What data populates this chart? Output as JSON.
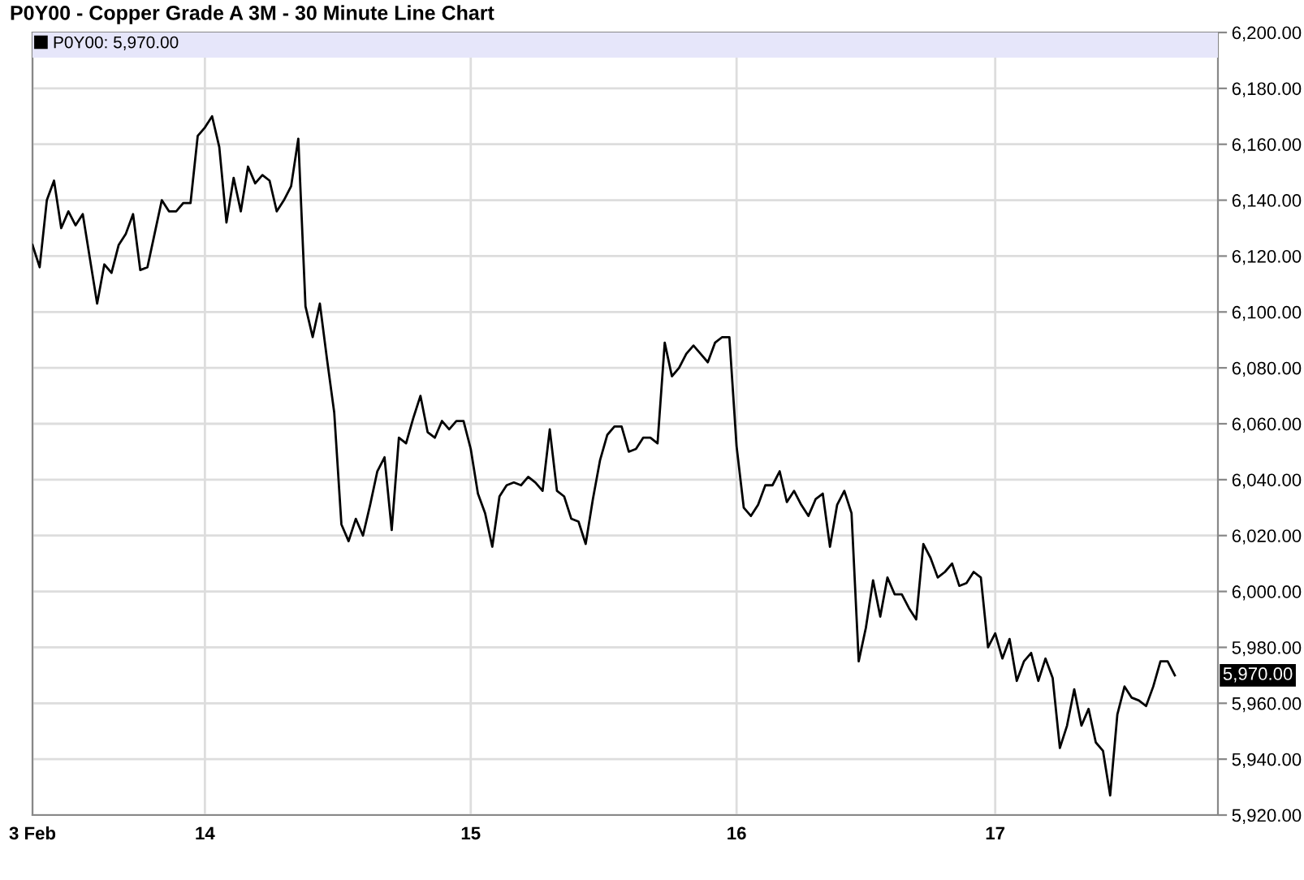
{
  "chart_data": {
    "type": "line",
    "title": "P0Y00 - Copper Grade A 3M - 30 Minute Line Chart",
    "categories": [
      "3 Feb",
      null,
      null,
      null,
      null,
      null,
      null,
      null,
      null,
      null,
      null,
      null,
      null,
      null,
      null,
      null,
      null,
      null,
      null,
      null,
      null,
      null,
      null,
      null,
      "14",
      null,
      null,
      null,
      null,
      null,
      null,
      null,
      null,
      null,
      null,
      null,
      null,
      null,
      null,
      null,
      null,
      null,
      null,
      null,
      null,
      null,
      null,
      null,
      null,
      null,
      null,
      null,
      null,
      null,
      null,
      null,
      null,
      null,
      null,
      null,
      null,
      "15",
      null,
      null,
      null,
      null,
      null,
      null,
      null,
      null,
      null,
      null,
      null,
      null,
      null,
      null,
      null,
      null,
      null,
      null,
      null,
      null,
      null,
      null,
      null,
      null,
      null,
      null,
      null,
      null,
      null,
      null,
      null,
      null,
      null,
      null,
      null,
      null,
      "16",
      null,
      null,
      null,
      null,
      null,
      null,
      null,
      null,
      null,
      null,
      null,
      null,
      null,
      null,
      null,
      null,
      null,
      null,
      null,
      null,
      null,
      null,
      null,
      null,
      null,
      null,
      null,
      null,
      null,
      null,
      null,
      null,
      null,
      null,
      null,
      "17",
      null,
      null,
      null,
      null,
      null,
      null,
      null,
      null,
      null,
      null,
      null,
      null,
      null,
      null,
      null,
      null,
      null,
      null,
      null,
      null,
      null,
      null,
      null,
      null,
      null,
      null,
      null,
      null,
      null,
      null,
      null
    ],
    "ylim": [
      5920,
      6200
    ],
    "yticks": [
      {
        "value": 5920,
        "label": "5,920.00"
      },
      {
        "value": 5940,
        "label": "5,940.00"
      },
      {
        "value": 5960,
        "label": "5,960.00"
      },
      {
        "value": 5980,
        "label": "5,980.00"
      },
      {
        "value": 6000,
        "label": "6,000.00"
      },
      {
        "value": 6020,
        "label": "6,020.00"
      },
      {
        "value": 6040,
        "label": "6,040.00"
      },
      {
        "value": 6060,
        "label": "6,060.00"
      },
      {
        "value": 6080,
        "label": "6,080.00"
      },
      {
        "value": 6100,
        "label": "6,100.00"
      },
      {
        "value": 6120,
        "label": "6,120.00"
      },
      {
        "value": 6140,
        "label": "6,140.00"
      },
      {
        "value": 6160,
        "label": "6,160.00"
      },
      {
        "value": 6180,
        "label": "6,180.00"
      },
      {
        "value": 6200,
        "label": "6,200.00"
      }
    ],
    "bands": [
      {
        "axis": "y",
        "from": 6191,
        "to": 6200,
        "color": "#e6e6fa"
      }
    ],
    "grid": true,
    "legend": "top left",
    "marker": "none",
    "line_style": "solid",
    "annotations": [
      "5,970.00"
    ],
    "series": [
      {
        "name": "P0Y00: 5,970.00",
        "color": "#000000",
        "values": [
          6124,
          6116,
          6140,
          6147,
          6130,
          6136,
          6131,
          6135,
          6119,
          6103,
          6117,
          6114,
          6124,
          6128,
          6135,
          6115,
          6116,
          6128,
          6140,
          6136,
          6136,
          6139,
          6139,
          6163,
          6166,
          6170,
          6159,
          6132,
          6148,
          6136,
          6152,
          6146,
          6149,
          6147,
          6136,
          6140,
          6145,
          6162,
          6102,
          6091,
          6103,
          6083,
          6064,
          6024,
          6018,
          6026,
          6020,
          6031,
          6043,
          6048,
          6022,
          6055,
          6053,
          6062,
          6070,
          6057,
          6055,
          6061,
          6058,
          6061,
          6061,
          6051,
          6035,
          6028,
          6016,
          6034,
          6038,
          6039,
          6038,
          6041,
          6039,
          6036,
          6058,
          6036,
          6034,
          6026,
          6025,
          6017,
          6033,
          6047,
          6056,
          6059,
          6059,
          6050,
          6051,
          6055,
          6055,
          6053,
          6089,
          6077,
          6080,
          6085,
          6088,
          6085,
          6082,
          6089,
          6091,
          6091,
          6052,
          6030,
          6027,
          6031,
          6038,
          6038,
          6043,
          6032,
          6036,
          6031,
          6027,
          6033,
          6035,
          6016,
          6031,
          6036,
          6028,
          5975,
          5987,
          6004,
          5991,
          6005,
          5999,
          5999,
          5994,
          5990,
          6017,
          6012,
          6005,
          6007,
          6010,
          6002,
          6003,
          6007,
          6005,
          5980,
          5985,
          5976,
          5983,
          5968,
          5975,
          5978,
          5968,
          5976,
          5969,
          5944,
          5952,
          5965,
          5952,
          5958,
          5946,
          5943,
          5927,
          5956,
          5966,
          5962,
          5961,
          5959,
          5966,
          5975,
          5975,
          5970,
          null,
          null,
          null,
          null,
          null,
          null
        ]
      }
    ]
  }
}
